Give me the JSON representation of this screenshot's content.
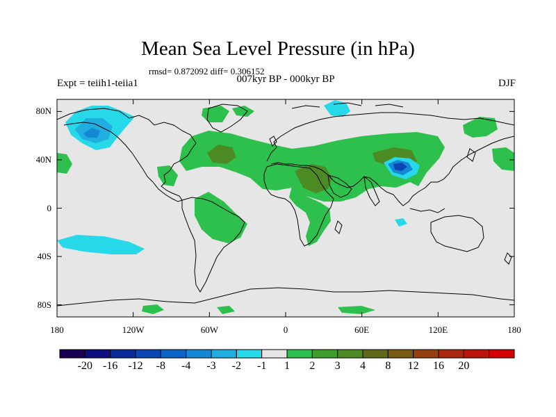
{
  "title": "Mean Sea Level Pressure (in hPa)",
  "stats": "rmsd= 0.872092 diff= 0.306152",
  "subtitle": "007kyr BP - 000kyr BP",
  "experiment": "Expt = teiih1-teiia1",
  "season": "DJF",
  "lat_labels": [
    {
      "label": "80N",
      "lat": 80
    },
    {
      "label": "40N",
      "lat": 40
    },
    {
      "label": "0",
      "lat": 0
    },
    {
      "label": "40S",
      "lat": -40
    },
    {
      "label": "80S",
      "lat": -80
    }
  ],
  "lon_labels": [
    {
      "label": "180",
      "lon": -180
    },
    {
      "label": "120W",
      "lon": -120
    },
    {
      "label": "60W",
      "lon": -60
    },
    {
      "label": "0",
      "lon": 0
    },
    {
      "label": "60E",
      "lon": 60
    },
    {
      "label": "120E",
      "lon": 120
    },
    {
      "label": "180",
      "lon": 180
    }
  ],
  "colorbar": {
    "colors": [
      "#1a0052",
      "#0d0d80",
      "#0b2a9a",
      "#0a46b4",
      "#0c64c6",
      "#1488d4",
      "#20aee0",
      "#27d8e8",
      "#e6e6e6",
      "#2ec04c",
      "#3d9e2c",
      "#4c8a24",
      "#5e6a1a",
      "#7a5a14",
      "#944012",
      "#a8280e",
      "#bc140a",
      "#d40004"
    ],
    "labels": [
      "-20",
      "-16",
      "-12",
      "-8",
      "-4",
      "-3",
      "-2",
      "-1",
      "1",
      "2",
      "3",
      "4",
      "8",
      "12",
      "16",
      "20"
    ]
  },
  "colors": {
    "background": "#e6e6e6",
    "positive_1_2": "#2ec04c",
    "positive_3_4": "#4c8a24",
    "negative_2_1": "#27d8e8",
    "negative_3_2": "#20aee0",
    "negative_4_3": "#1488d4",
    "negative_8_4": "#0a46b4",
    "coastline": "#000000"
  }
}
